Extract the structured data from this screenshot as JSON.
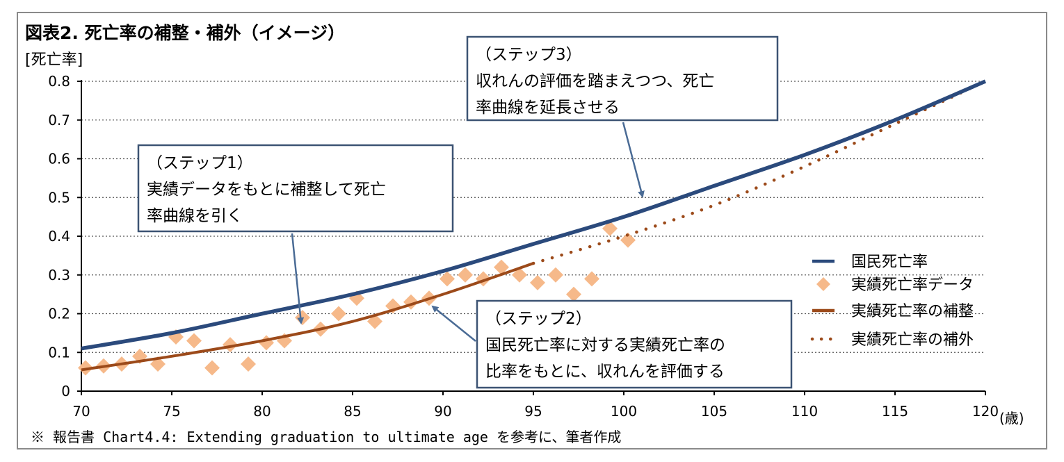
{
  "title": "図表2. 死亡率の補整・補外（イメージ）",
  "footnote": "※ 報告書 Chart4.4: Extending graduation to ultimate age を参考に、筆者作成",
  "colors": {
    "national": "#2b4a7c",
    "data_points": "#f6b98a",
    "graduated": "#9c4a1a",
    "extrapolated": "#9c4a1a",
    "callout_border": "#3c5373",
    "arrow": "#4a6b95"
  },
  "callouts": [
    {
      "lines": [
        "（ステップ3）",
        "収れんの評価を踏まえつつ、死亡",
        "率曲線を延長させる"
      ]
    },
    {
      "lines": [
        "（ステップ1）",
        "実績データをもとに補整して死亡",
        "率曲線を引く"
      ]
    },
    {
      "lines": [
        "（ステップ2）",
        "国民死亡率に対する実績死亡率の",
        "比率をもとに、収れんを評価する"
      ]
    }
  ],
  "chart_data": {
    "type": "line",
    "ylabel": "[死亡率]",
    "xlabel": "(歳)",
    "xlim": [
      70,
      120
    ],
    "ylim": [
      0,
      0.8
    ],
    "x_ticks": [
      70,
      75,
      80,
      85,
      90,
      95,
      100,
      105,
      110,
      115,
      120
    ],
    "y_ticks": [
      0,
      0.1,
      0.2,
      0.3,
      0.4,
      0.5,
      0.6,
      0.7,
      0.8
    ],
    "y_tick_labels": [
      "0",
      "0.1",
      "0.2",
      "0.3",
      "0.4",
      "0.5",
      "0.6",
      "0.7",
      "0.8"
    ],
    "grid": "horizontal dotted",
    "legend_position": "right",
    "series": [
      {
        "name": "国民死亡率",
        "kind": "line",
        "x": [
          70,
          75,
          80,
          85,
          90,
          95,
          100,
          105,
          110,
          115,
          120
        ],
        "y": [
          0.11,
          0.15,
          0.2,
          0.25,
          0.31,
          0.38,
          0.45,
          0.53,
          0.61,
          0.7,
          0.8
        ]
      },
      {
        "name": "実績死亡率データ",
        "kind": "scatter",
        "x": [
          70,
          71,
          72,
          73,
          74,
          75,
          76,
          77,
          78,
          79,
          80,
          81,
          82,
          83,
          84,
          85,
          86,
          87,
          88,
          89,
          90,
          91,
          92,
          93,
          94,
          95,
          96,
          97,
          98,
          99,
          100
        ],
        "y": [
          0.06,
          0.065,
          0.07,
          0.09,
          0.07,
          0.14,
          0.13,
          0.06,
          0.12,
          0.07,
          0.125,
          0.13,
          0.19,
          0.16,
          0.2,
          0.24,
          0.18,
          0.22,
          0.23,
          0.24,
          0.29,
          0.3,
          0.29,
          0.32,
          0.3,
          0.28,
          0.3,
          0.25,
          0.29,
          0.42,
          0.39
        ]
      },
      {
        "name": "実績死亡率の補整",
        "kind": "line",
        "x": [
          70,
          75,
          80,
          85,
          90,
          95
        ],
        "y": [
          0.055,
          0.09,
          0.13,
          0.18,
          0.25,
          0.33
        ]
      },
      {
        "name": "実績死亡率の補外",
        "kind": "dotted",
        "x": [
          95,
          100,
          105,
          110,
          115,
          120
        ],
        "y": [
          0.33,
          0.4,
          0.48,
          0.58,
          0.69,
          0.8
        ]
      }
    ]
  }
}
